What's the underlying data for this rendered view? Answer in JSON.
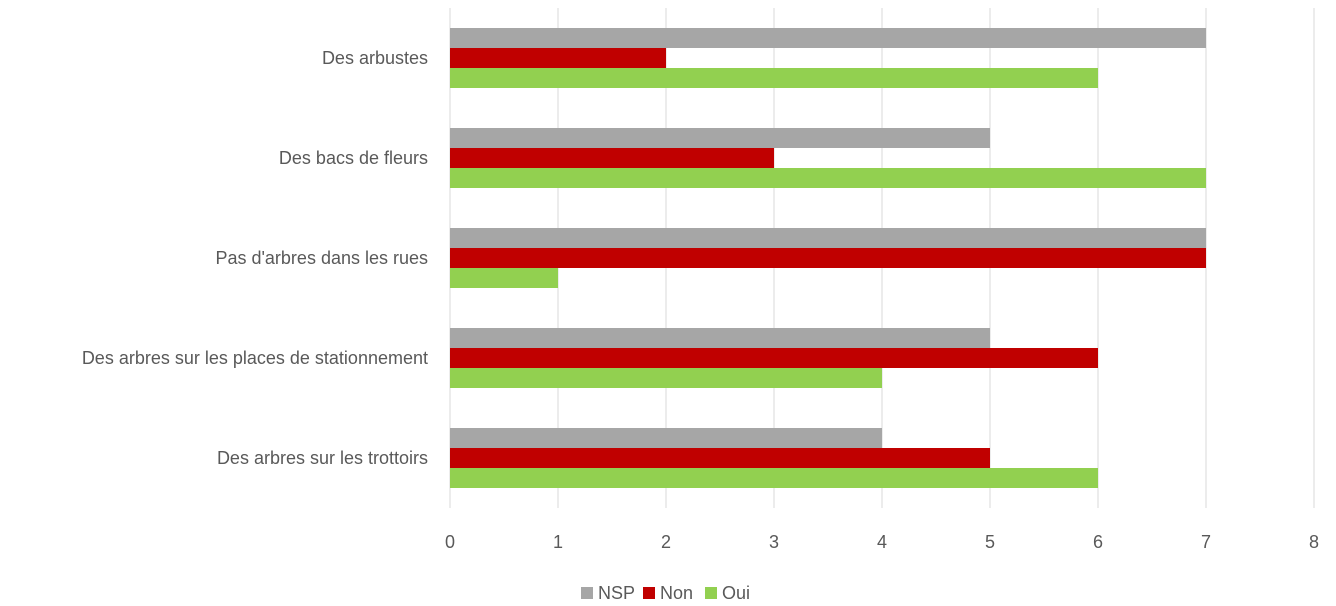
{
  "chart_data": {
    "type": "bar",
    "orientation": "horizontal",
    "categories": [
      "Des arbustes",
      "Des bacs de fleurs",
      "Pas d'arbres dans les rues",
      "Des arbres sur les places de stationnement",
      "Des arbres sur les trottoirs"
    ],
    "series": [
      {
        "name": "NSP",
        "color": "#a6a6a6",
        "values": [
          7,
          5,
          7,
          5,
          4
        ]
      },
      {
        "name": "Non",
        "color": "#c00000",
        "values": [
          2,
          3,
          7,
          6,
          5
        ]
      },
      {
        "name": "Oui",
        "color": "#92d050",
        "values": [
          6,
          7,
          1,
          4,
          6
        ]
      }
    ],
    "xlim": [
      0,
      8
    ],
    "x_ticks": [
      "0",
      "1",
      "2",
      "3",
      "4",
      "5",
      "6",
      "7",
      "8"
    ],
    "grid": true,
    "legend_position": "bottom"
  }
}
